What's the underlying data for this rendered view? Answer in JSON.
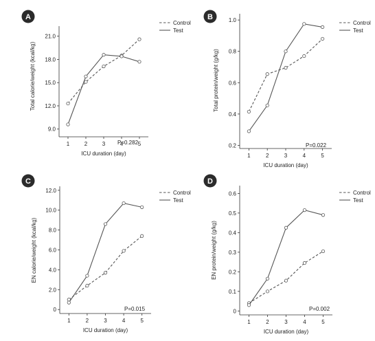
{
  "chart_data": [
    {
      "type": "line",
      "panel_letter": "A",
      "xlabel": "ICU duration (day)",
      "ylabel": "Total calorie/weight (kcal/kg)",
      "x": [
        1,
        2,
        3,
        4,
        5
      ],
      "xticks": [
        1,
        2,
        3,
        4,
        5
      ],
      "yticks": [
        9.0,
        12.0,
        15.0,
        18.0,
        21.0
      ],
      "ytick_labels": [
        "9.0",
        "12.0",
        "15.0",
        "18.0",
        "21.0"
      ],
      "xlim": [
        0.5,
        5.5
      ],
      "ylim": [
        8.0,
        22.3
      ],
      "series": [
        {
          "name": "Control",
          "style": "dashed",
          "values": [
            12.3,
            15.1,
            17.1,
            18.5,
            20.6
          ]
        },
        {
          "name": "Test",
          "style": "solid",
          "values": [
            9.6,
            15.8,
            18.6,
            18.4,
            17.7
          ]
        }
      ],
      "annotation": "P=0.282",
      "legend_position": "top-right"
    },
    {
      "type": "line",
      "panel_letter": "B",
      "xlabel": "ICU duration (day)",
      "ylabel": "Total protein/weight (g/kg)",
      "x": [
        1,
        2,
        3,
        4,
        5
      ],
      "xticks": [
        1,
        2,
        3,
        4,
        5
      ],
      "yticks": [
        0.2,
        0.4,
        0.6,
        0.8,
        1.0
      ],
      "ytick_labels": [
        "0.2",
        "0.4",
        "0.6",
        "0.8",
        "1.0"
      ],
      "xlim": [
        0.5,
        5.5
      ],
      "ylim": [
        0.18,
        1.04
      ],
      "series": [
        {
          "name": "Control",
          "style": "dashed",
          "values": [
            0.415,
            0.655,
            0.695,
            0.77,
            0.88
          ]
        },
        {
          "name": "Test",
          "style": "solid",
          "values": [
            0.29,
            0.455,
            0.8,
            0.975,
            0.955
          ]
        }
      ],
      "annotation": "P=0.022",
      "legend_position": "top-right"
    },
    {
      "type": "line",
      "panel_letter": "C",
      "xlabel": "ICU duration (day)",
      "ylabel": "EN calorie/weight (kcal/kg)",
      "x": [
        1,
        2,
        3,
        4,
        5
      ],
      "xticks": [
        1,
        2,
        3,
        4,
        5
      ],
      "yticks": [
        0,
        2.0,
        4.0,
        6.0,
        8.0,
        10.0,
        12.0
      ],
      "ytick_labels": [
        "0",
        "2.0",
        "4.0",
        "6.0",
        "8.0",
        "10.0",
        "12.0"
      ],
      "xlim": [
        0.5,
        5.5
      ],
      "ylim": [
        -0.4,
        12.4
      ],
      "series": [
        {
          "name": "Control",
          "style": "dashed",
          "values": [
            1.0,
            2.4,
            3.7,
            5.9,
            7.4
          ]
        },
        {
          "name": "Test",
          "style": "solid",
          "values": [
            0.7,
            3.4,
            8.6,
            10.7,
            10.3
          ]
        }
      ],
      "annotation": "P=0.015",
      "legend_position": "top-right"
    },
    {
      "type": "line",
      "panel_letter": "D",
      "xlabel": "ICU duration (day)",
      "ylabel": "EN protein/weight (g/kg)",
      "x": [
        1,
        2,
        3,
        4,
        5
      ],
      "xticks": [
        1,
        2,
        3,
        4,
        5
      ],
      "yticks": [
        0,
        0.1,
        0.2,
        0.3,
        0.4,
        0.5,
        0.6
      ],
      "ytick_labels": [
        "0",
        "0.1",
        "0.2",
        "0.3",
        "0.4",
        "0.5",
        "0.6"
      ],
      "xlim": [
        0.5,
        5.5
      ],
      "ylim": [
        -0.02,
        0.64
      ],
      "series": [
        {
          "name": "Control",
          "style": "dashed",
          "values": [
            0.04,
            0.1,
            0.155,
            0.245,
            0.305
          ]
        },
        {
          "name": "Test",
          "style": "solid",
          "values": [
            0.03,
            0.165,
            0.425,
            0.515,
            0.49
          ]
        }
      ],
      "annotation": "P=0.002",
      "legend_position": "top-right"
    }
  ],
  "style": {
    "badge_color": "#2b2b2b",
    "line_color": "#555555",
    "axis_color": "#333333"
  }
}
